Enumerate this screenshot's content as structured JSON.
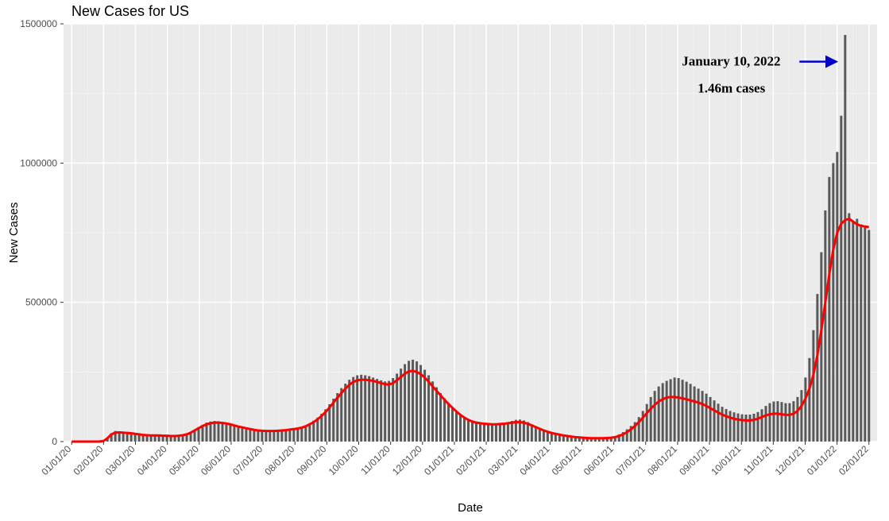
{
  "chart": {
    "type": "bar+line",
    "title": "New Cases for US",
    "xlabel": "Date",
    "ylabel": "New Cases",
    "background_color": "#ebebeb",
    "grid_major_color": "#ffffff",
    "grid_minor_color": "#f5f5f5",
    "bar_color": "#595959",
    "line_color": "#ff0000",
    "line_width": 3,
    "title_fontsize": 18,
    "axis_label_fontsize": 15,
    "tick_fontsize": 12,
    "ylim": [
      0,
      1500000
    ],
    "ytick_step": 500000,
    "yticks": [
      0,
      500000,
      1000000,
      1500000
    ],
    "xtick_labels": [
      "01/01/20",
      "02/01/20",
      "03/01/20",
      "04/01/20",
      "05/01/20",
      "06/01/20",
      "07/01/20",
      "08/01/20",
      "09/01/20",
      "10/01/20",
      "11/01/20",
      "12/01/20",
      "01/01/21",
      "02/01/21",
      "03/01/21",
      "04/01/21",
      "05/01/21",
      "06/01/21",
      "07/01/21",
      "08/01/21",
      "09/01/21",
      "10/01/21",
      "11/01/21",
      "12/01/21",
      "01/01/22",
      "02/01/22"
    ],
    "xtick_rotation": 45,
    "annotation": {
      "line1": "January 10, 2022",
      "line2": "1.46m cases",
      "arrow_color": "#0000cc",
      "font_family": "Times New Roman",
      "font_weight": "bold",
      "font_size": 17
    },
    "smooth_values": [
      0,
      0,
      0,
      0,
      0,
      0,
      100,
      300,
      2000,
      12000,
      26000,
      32000,
      33000,
      32000,
      31000,
      30000,
      28000,
      26000,
      24000,
      23000,
      22000,
      22000,
      22000,
      21000,
      21000,
      20000,
      20000,
      21000,
      23000,
      26000,
      32000,
      40000,
      48000,
      56000,
      62000,
      66000,
      68000,
      68000,
      67000,
      65000,
      62000,
      58000,
      54000,
      51000,
      48000,
      45000,
      42000,
      40000,
      39000,
      38000,
      38000,
      38000,
      39000,
      40000,
      41000,
      43000,
      45000,
      47000,
      50000,
      55000,
      62000,
      70000,
      80000,
      92000,
      106000,
      122000,
      140000,
      158000,
      174000,
      190000,
      204000,
      214000,
      220000,
      222000,
      222000,
      220000,
      218000,
      214000,
      210000,
      206000,
      205000,
      210000,
      220000,
      232000,
      244000,
      252000,
      254000,
      250000,
      242000,
      230000,
      215000,
      198000,
      182000,
      166000,
      150000,
      135000,
      121000,
      108000,
      96000,
      86000,
      78000,
      72000,
      68000,
      66000,
      64000,
      63000,
      62000,
      62000,
      63000,
      64000,
      66000,
      68000,
      70000,
      70000,
      68000,
      64000,
      58000,
      52000,
      46000,
      40000,
      35000,
      31000,
      28000,
      25000,
      22000,
      20000,
      18000,
      16000,
      15000,
      14000,
      13000,
      12000,
      12000,
      12000,
      12000,
      13000,
      14000,
      16000,
      20000,
      26000,
      34000,
      44000,
      56000,
      70000,
      86000,
      102000,
      118000,
      132000,
      144000,
      152000,
      158000,
      160000,
      160000,
      158000,
      155000,
      152000,
      148000,
      144000,
      140000,
      135000,
      128000,
      120000,
      112000,
      104000,
      97000,
      91000,
      86000,
      82000,
      79000,
      77000,
      76000,
      76000,
      78000,
      82000,
      88000,
      94000,
      98000,
      100000,
      100000,
      98000,
      96000,
      96000,
      100000,
      110000,
      128000,
      154000,
      190000,
      240000,
      310000,
      400000,
      500000,
      600000,
      690000,
      750000,
      782000,
      795000,
      800000,
      790000,
      780000,
      775000,
      772000,
      770000
    ],
    "bar_values": [
      0,
      0,
      0,
      0,
      0,
      0,
      50,
      250,
      1800,
      14000,
      30000,
      38000,
      36000,
      34000,
      33000,
      31000,
      30000,
      28000,
      25000,
      24000,
      23000,
      22000,
      23000,
      22000,
      21000,
      20000,
      21000,
      22000,
      24000,
      27000,
      34000,
      42000,
      52000,
      60000,
      68000,
      72000,
      74000,
      73000,
      71000,
      68000,
      64000,
      60000,
      56000,
      53000,
      50000,
      47000,
      44000,
      41000,
      40000,
      39000,
      38000,
      39000,
      40000,
      41000,
      42000,
      44000,
      46000,
      49000,
      52000,
      58000,
      66000,
      75000,
      86000,
      100000,
      116000,
      134000,
      154000,
      174000,
      192000,
      208000,
      222000,
      232000,
      238000,
      240000,
      238000,
      235000,
      230000,
      225000,
      220000,
      216000,
      218000,
      228000,
      244000,
      262000,
      278000,
      290000,
      294000,
      288000,
      275000,
      258000,
      238000,
      216000,
      195000,
      174000,
      155000,
      138000,
      123000,
      110000,
      98000,
      88000,
      80000,
      74000,
      70000,
      68000,
      66000,
      65000,
      64000,
      64000,
      65000,
      67000,
      70000,
      74000,
      78000,
      79000,
      76000,
      70000,
      62000,
      55000,
      48000,
      42000,
      37000,
      33000,
      29000,
      26000,
      23000,
      21000,
      19000,
      17000,
      15000,
      14000,
      13000,
      12000,
      12000,
      12000,
      13000,
      14000,
      16000,
      20000,
      26000,
      34000,
      44000,
      56000,
      70000,
      88000,
      110000,
      135000,
      160000,
      182000,
      198000,
      210000,
      218000,
      224000,
      230000,
      228000,
      222000,
      215000,
      207000,
      198000,
      190000,
      182000,
      172000,
      160000,
      148000,
      136000,
      125000,
      117000,
      110000,
      105000,
      101000,
      98000,
      97000,
      97000,
      100000,
      106000,
      116000,
      128000,
      138000,
      144000,
      145000,
      142000,
      138000,
      138000,
      145000,
      160000,
      185000,
      230000,
      300000,
      400000,
      530000,
      680000,
      830000,
      950000,
      1000000,
      1040000,
      1170000,
      1460000,
      820000,
      790000,
      800000,
      780000,
      770000,
      760000
    ]
  }
}
